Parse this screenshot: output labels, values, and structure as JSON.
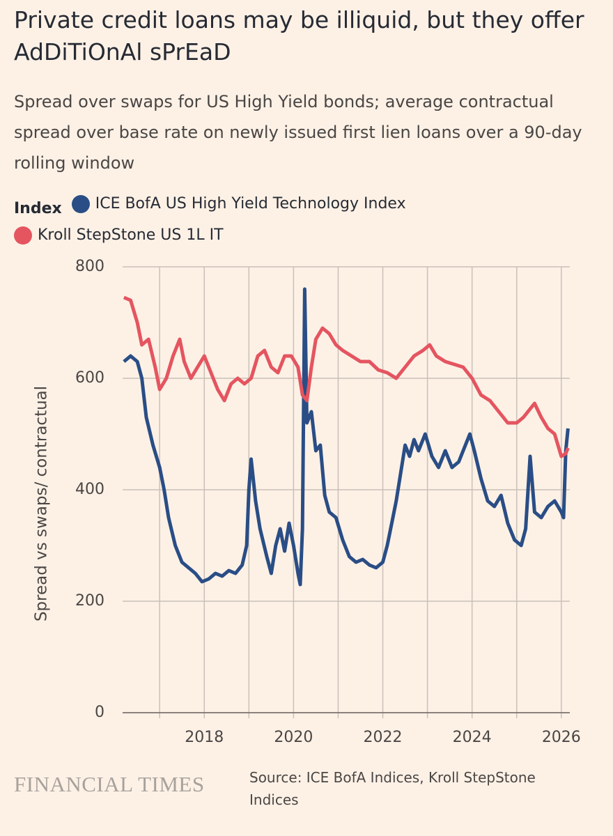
{
  "chart_data": {
    "type": "line",
    "title": "Private credit loans may be illiquid, but they offer AdDiTiOnAl sPrEaD",
    "subtitle": "Spread over swaps for US High Yield bonds; average contractual spread over base rate on newly issued first lien loans over a 90-day rolling window",
    "legend_title": "Index",
    "y_label": "Spread vs swaps/ contractual",
    "source": "Source: ICE BofA Indices, Kroll StepStone Indices",
    "brand": "FINANCIAL TIMES",
    "xlim": [
      2016.17,
      2026.19
    ],
    "xticks": [
      2018,
      2020,
      2022,
      2024,
      2026
    ],
    "x_minor_grid": [
      2017,
      2019,
      2021,
      2023,
      2025
    ],
    "ylim": [
      0,
      800
    ],
    "yticks": [
      0,
      200,
      400,
      600,
      800
    ],
    "grid": true,
    "series": [
      {
        "name": "ICE BofA US High Yield Technology Index",
        "color": "#2a4d85",
        "x": [
          2016.2,
          2016.35,
          2016.5,
          2016.6,
          2016.7,
          2016.85,
          2017.0,
          2017.1,
          2017.2,
          2017.35,
          2017.5,
          2017.65,
          2017.8,
          2017.95,
          2018.1,
          2018.25,
          2018.4,
          2018.55,
          2018.7,
          2018.85,
          2018.95,
          2019.0,
          2019.05,
          2019.15,
          2019.25,
          2019.4,
          2019.5,
          2019.6,
          2019.7,
          2019.8,
          2019.9,
          2020.0,
          2020.1,
          2020.15,
          2020.2,
          2020.25,
          2020.3,
          2020.4,
          2020.5,
          2020.6,
          2020.7,
          2020.8,
          2020.95,
          2021.1,
          2021.25,
          2021.4,
          2021.55,
          2021.7,
          2021.85,
          2022.0,
          2022.1,
          2022.2,
          2022.3,
          2022.4,
          2022.5,
          2022.6,
          2022.7,
          2022.8,
          2022.95,
          2023.1,
          2023.25,
          2023.4,
          2023.55,
          2023.7,
          2023.85,
          2023.95,
          2024.05,
          2024.2,
          2024.35,
          2024.5,
          2024.65,
          2024.8,
          2024.95,
          2025.1,
          2025.2,
          2025.3,
          2025.4,
          2025.55,
          2025.7,
          2025.85,
          2026.0,
          2026.05,
          2026.1,
          2026.15
        ],
        "values": [
          630,
          640,
          630,
          600,
          530,
          480,
          440,
          400,
          350,
          300,
          270,
          260,
          250,
          235,
          240,
          250,
          245,
          255,
          250,
          265,
          300,
          400,
          455,
          380,
          330,
          280,
          250,
          300,
          330,
          290,
          340,
          300,
          250,
          230,
          330,
          760,
          520,
          540,
          470,
          480,
          390,
          360,
          350,
          310,
          280,
          270,
          275,
          265,
          260,
          270,
          300,
          340,
          380,
          430,
          480,
          460,
          490,
          470,
          500,
          460,
          440,
          470,
          440,
          450,
          480,
          500,
          470,
          420,
          380,
          370,
          390,
          340,
          310,
          300,
          330,
          460,
          360,
          350,
          370,
          380,
          360,
          350,
          470,
          510
        ]
      },
      {
        "name": "Kroll StepStone US 1L IT",
        "color": "#e45560",
        "x": [
          2016.2,
          2016.35,
          2016.5,
          2016.6,
          2016.75,
          2016.9,
          2017.0,
          2017.15,
          2017.3,
          2017.45,
          2017.55,
          2017.7,
          2017.85,
          2018.0,
          2018.15,
          2018.3,
          2018.45,
          2018.6,
          2018.75,
          2018.9,
          2019.05,
          2019.2,
          2019.35,
          2019.5,
          2019.65,
          2019.8,
          2019.95,
          2020.1,
          2020.2,
          2020.3,
          2020.4,
          2020.5,
          2020.65,
          2020.8,
          2020.95,
          2021.1,
          2021.3,
          2021.5,
          2021.7,
          2021.9,
          2022.1,
          2022.3,
          2022.5,
          2022.7,
          2022.9,
          2023.05,
          2023.2,
          2023.4,
          2023.6,
          2023.8,
          2024.0,
          2024.2,
          2024.4,
          2024.6,
          2024.8,
          2025.0,
          2025.15,
          2025.3,
          2025.4,
          2025.55,
          2025.7,
          2025.85,
          2026.0,
          2026.1,
          2026.15
        ],
        "values": [
          745,
          740,
          700,
          660,
          670,
          620,
          580,
          600,
          640,
          670,
          630,
          600,
          620,
          640,
          610,
          580,
          560,
          590,
          600,
          590,
          600,
          640,
          650,
          620,
          610,
          640,
          640,
          620,
          570,
          560,
          620,
          670,
          690,
          680,
          660,
          650,
          640,
          630,
          630,
          615,
          610,
          600,
          620,
          640,
          650,
          660,
          640,
          630,
          625,
          620,
          600,
          570,
          560,
          540,
          520,
          520,
          530,
          545,
          555,
          530,
          510,
          500,
          460,
          465,
          475
        ]
      }
    ]
  }
}
